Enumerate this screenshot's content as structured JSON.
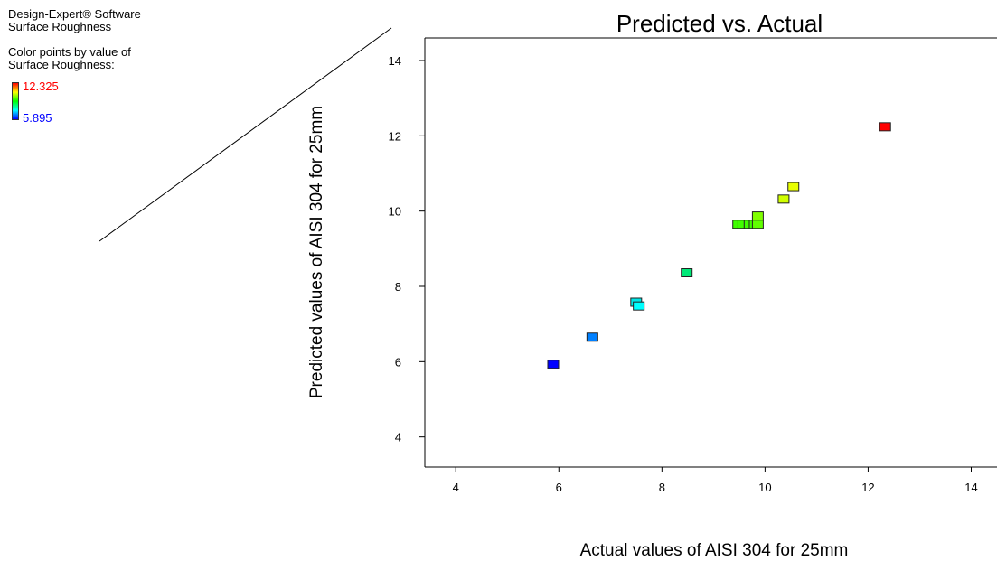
{
  "info": {
    "software": "Design-Expert® Software",
    "response": "Surface Roughness",
    "color_note_1": "Color points by value of",
    "color_note_2": "Surface Roughness:"
  },
  "legend": {
    "high": "12.325",
    "low": "5.895",
    "high_color": "#ff0000",
    "low_color": "#0000ff"
  },
  "chart_data": {
    "type": "scatter",
    "title": "Predicted vs. Actual",
    "xlabel": "Actual values of AISI 304 for  25mm",
    "ylabel": "Predicted values of AISI 304 for 25mm",
    "xlim": [
      3.4,
      14.5
    ],
    "ylim": [
      3.2,
      14.6
    ],
    "xticks": [
      "4",
      "6",
      "8",
      "10",
      "12",
      "14"
    ],
    "yticks": [
      "4",
      "6",
      "8",
      "10",
      "12",
      "14"
    ],
    "points": [
      {
        "x": 5.89,
        "y": 5.93,
        "color": "#0000ff"
      },
      {
        "x": 6.65,
        "y": 6.65,
        "color": "#0080ff"
      },
      {
        "x": 7.5,
        "y": 7.58,
        "color": "#00e5e5"
      },
      {
        "x": 7.55,
        "y": 7.48,
        "color": "#00ffff"
      },
      {
        "x": 8.48,
        "y": 8.36,
        "color": "#00e878"
      },
      {
        "x": 9.48,
        "y": 9.65,
        "color": "#40ff00"
      },
      {
        "x": 9.58,
        "y": 9.65,
        "color": "#40ff00"
      },
      {
        "x": 9.7,
        "y": 9.65,
        "color": "#40ff00"
      },
      {
        "x": 9.8,
        "y": 9.65,
        "color": "#40ff00"
      },
      {
        "x": 9.86,
        "y": 9.87,
        "color": "#80ff00"
      },
      {
        "x": 9.86,
        "y": 9.65,
        "color": "#60ff00"
      },
      {
        "x": 10.36,
        "y": 10.32,
        "color": "#d0ff00"
      },
      {
        "x": 10.55,
        "y": 10.65,
        "color": "#e8ff00"
      },
      {
        "x": 12.33,
        "y": 12.24,
        "color": "#ff0000"
      }
    ]
  }
}
